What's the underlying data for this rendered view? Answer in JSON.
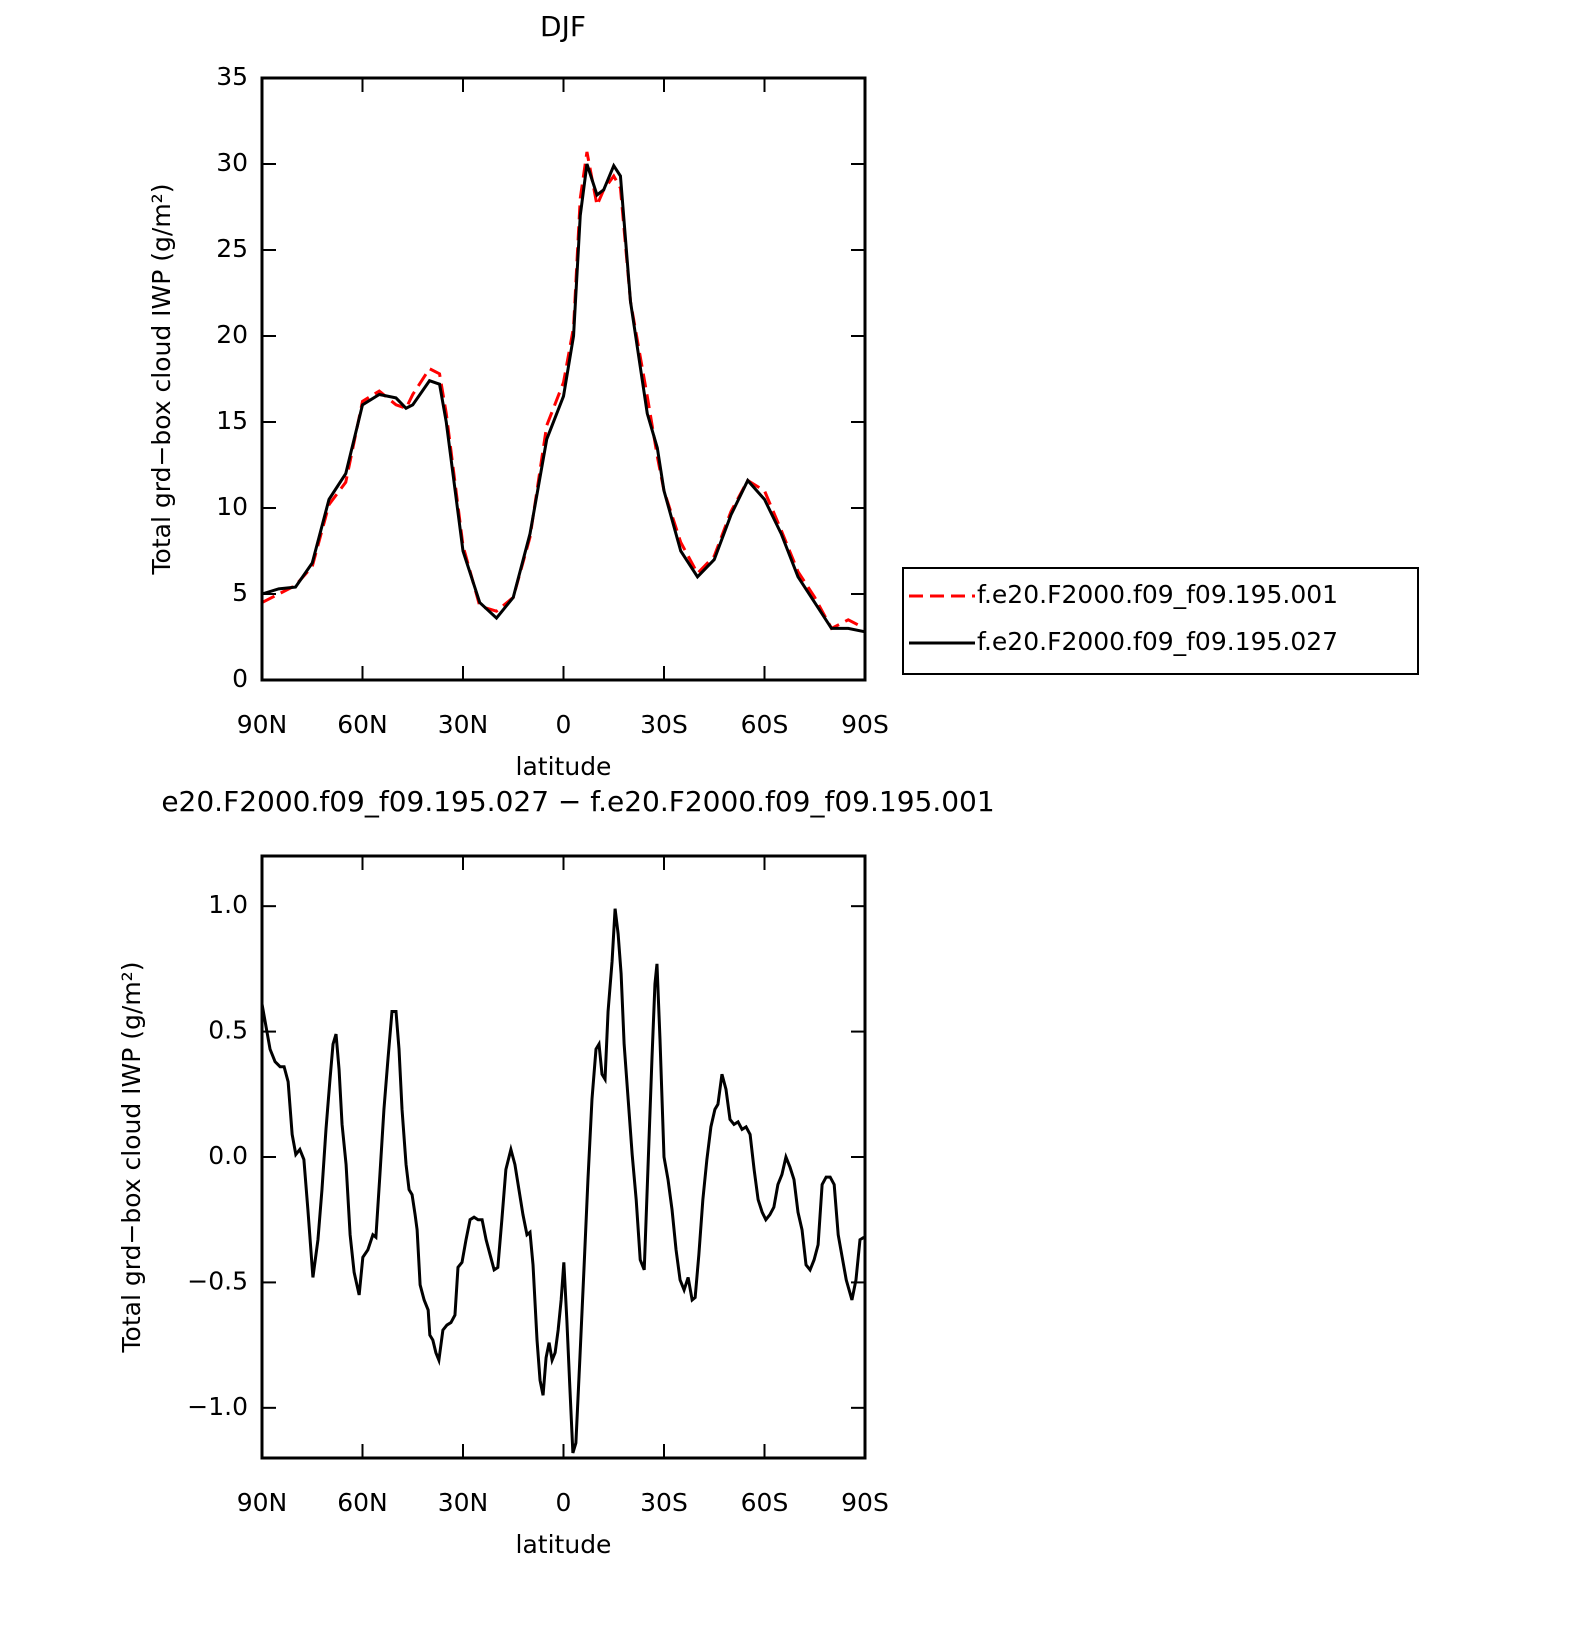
{
  "chart_data": [
    {
      "type": "line",
      "title": "DJF",
      "xlabel": "latitude",
      "ylabel": "Total grd−box cloud IWP (g/m²)",
      "xlim": [
        90,
        -90
      ],
      "xticks": [
        {
          "value": 90,
          "label": "90N"
        },
        {
          "value": 60,
          "label": "60N"
        },
        {
          "value": 30,
          "label": "30N"
        },
        0,
        {
          "value": -30,
          "label": "30S"
        },
        {
          "value": -60,
          "label": "60S"
        },
        {
          "value": -90,
          "label": "90S"
        }
      ],
      "ylim": [
        0,
        35
      ],
      "yticks": [
        0,
        5,
        10,
        15,
        20,
        25,
        30,
        35
      ],
      "legend": "outside-right",
      "x": [
        90,
        85,
        80,
        75,
        70,
        65,
        60,
        55,
        50,
        47,
        45,
        40,
        37,
        35,
        30,
        25,
        20,
        15,
        10,
        5,
        0,
        -3,
        -5,
        -7,
        -10,
        -12,
        -15,
        -17,
        -20,
        -25,
        -28,
        -30,
        -35,
        -40,
        -45,
        -50,
        -55,
        -60,
        -65,
        -70,
        -75,
        -80,
        -85,
        -90
      ],
      "series": [
        {
          "name": "f.e20.F2000.f09_f09.195.001",
          "color": "#ff0000",
          "dash": true,
          "values": [
            4.5,
            5.0,
            5.5,
            6.6,
            10.2,
            11.5,
            16.2,
            16.8,
            16.0,
            15.8,
            16.6,
            18.1,
            17.8,
            15.5,
            7.8,
            4.3,
            4.0,
            4.8,
            8.3,
            14.8,
            17.3,
            20.5,
            28,
            30.7,
            27.6,
            28.5,
            29.3,
            28.6,
            22,
            16.5,
            13,
            11,
            8,
            6.2,
            7.2,
            9.8,
            11.6,
            11.0,
            8.7,
            6.3,
            4.8,
            3.0,
            3.5,
            3.0
          ]
        },
        {
          "name": "f.e20.F2000.f09_f09.195.027",
          "color": "#000000",
          "dash": false,
          "values": [
            5.0,
            5.3,
            5.4,
            6.8,
            10.5,
            12.0,
            16.0,
            16.6,
            16.4,
            15.8,
            16.0,
            17.4,
            17.2,
            15,
            7.5,
            4.5,
            3.6,
            4.8,
            8.5,
            14,
            16.5,
            20,
            27,
            30.0,
            28.2,
            28.5,
            29.9,
            29.3,
            22,
            15.5,
            13.5,
            11,
            7.5,
            6.0,
            7.0,
            9.6,
            11.6,
            10.5,
            8.5,
            6.0,
            4.5,
            3.0,
            3.0,
            2.8
          ]
        }
      ]
    },
    {
      "type": "line",
      "title": "e20.F2000.f09_f09.195.027 − f.e20.F2000.f09_f09.195.001",
      "xlabel": "latitude",
      "ylabel": "Total grd−box cloud IWP (g/m²)",
      "xlim": [
        90,
        -90
      ],
      "xticks": [
        {
          "value": 90,
          "label": "90N"
        },
        {
          "value": 60,
          "label": "60N"
        },
        {
          "value": 30,
          "label": "30N"
        },
        0,
        {
          "value": -30,
          "label": "30S"
        },
        {
          "value": -60,
          "label": "60S"
        },
        {
          "value": -90,
          "label": "90S"
        }
      ],
      "ylim": [
        -1.2,
        1.2
      ],
      "yticks": [
        {
          "value": -1,
          "label": "−1.0"
        },
        {
          "value": -0.5,
          "label": "−0.5"
        },
        {
          "value": 0,
          "label": "0.0"
        },
        0.5,
        {
          "value": 1,
          "label": "1.0"
        }
      ],
      "x": [
        90,
        87.6,
        86.1,
        84.6,
        83.4,
        82.2,
        81,
        79.9,
        78.7,
        77.5,
        76.3,
        74.8,
        73.3,
        72.1,
        70.9,
        69.7,
        68.8,
        67.9,
        67,
        66.1,
        64.9,
        63.7,
        62.5,
        61,
        59.9,
        58.4,
        56.9,
        56,
        54.8,
        53.6,
        52.4,
        51.2,
        50,
        49.1,
        48.2,
        47,
        46.1,
        45.2,
        44.3,
        43.7,
        42.8,
        41.6,
        40.4,
        39.9,
        39,
        38.1,
        37.2,
        36,
        34.8,
        33.6,
        32.4,
        31.5,
        30.3,
        29.1,
        27.9,
        26.7,
        25.5,
        24.3,
        23.1,
        21.9,
        20.7,
        19.6,
        18.4,
        17.2,
        15.7,
        14.5,
        13.3,
        12.1,
        10.9,
        10,
        9.1,
        7.9,
        7,
        6.1,
        5.2,
        4.3,
        3.4,
        2.5,
        1.6,
        0.7,
        -0.1,
        -1.0,
        -1.9,
        -2.8,
        -3.7,
        -4.9,
        -6.1,
        -7.3,
        -8.5,
        -9.7,
        -10.6,
        -11.5,
        -12.4,
        -13.3,
        -14.5,
        -15.4,
        -16.3,
        -17.2,
        -18.1,
        -19.3,
        -20.5,
        -21.7,
        -22.9,
        -24.1,
        -25.2,
        -26.4,
        -27.3,
        -27.9,
        -28.8,
        -30,
        -31.2,
        -32.4,
        -33.6,
        -34.8,
        -36,
        -37.2,
        -38.4,
        -39.3,
        -40.4,
        -41.6,
        -42.8,
        -44,
        -45.2,
        -46.1,
        -47.3,
        -48.5,
        -49.7,
        -50.9,
        -52.1,
        -53.3,
        -54.5,
        -55.7,
        -56.9,
        -58.1,
        -59.3,
        -60.4,
        -61.6,
        -62.8,
        -64,
        -65.2,
        -66.4,
        -67.6,
        -68.8,
        -70,
        -71.2,
        -72.4,
        -73.6,
        -74.8,
        -76,
        -77.2,
        -78.4,
        -79.6,
        -80.8,
        -82,
        -83.2,
        -84.4,
        -86.1,
        -87.3,
        -88.5,
        -89.7
      ],
      "series": [
        {
          "color": "#000000",
          "dash": false,
          "values": [
            0.61,
            0.43,
            0.38,
            0.36,
            0.36,
            0.3,
            0.09,
            0.01,
            0.03,
            -0.01,
            -0.21,
            -0.48,
            -0.33,
            -0.13,
            0.11,
            0.31,
            0.45,
            0.49,
            0.35,
            0.13,
            -0.03,
            -0.31,
            -0.46,
            -0.55,
            -0.4,
            -0.37,
            -0.31,
            -0.32,
            -0.07,
            0.19,
            0.39,
            0.58,
            0.58,
            0.43,
            0.19,
            -0.03,
            -0.13,
            -0.15,
            -0.23,
            -0.29,
            -0.51,
            -0.57,
            -0.61,
            -0.71,
            -0.73,
            -0.78,
            -0.81,
            -0.69,
            -0.67,
            -0.66,
            -0.63,
            -0.44,
            -0.42,
            -0.33,
            -0.25,
            -0.24,
            -0.25,
            -0.25,
            -0.33,
            -0.39,
            -0.45,
            -0.44,
            -0.25,
            -0.05,
            0.03,
            -0.03,
            -0.13,
            -0.23,
            -0.31,
            -0.3,
            -0.43,
            -0.73,
            -0.89,
            -0.95,
            -0.8,
            -0.74,
            -0.81,
            -0.78,
            -0.69,
            -0.57,
            -0.42,
            -0.65,
            -0.92,
            -1.18,
            -1.14,
            -0.8,
            -0.45,
            -0.09,
            0.23,
            0.43,
            0.45,
            0.33,
            0.31,
            0.58,
            0.78,
            0.99,
            0.89,
            0.73,
            0.45,
            0.23,
            0.01,
            -0.17,
            -0.41,
            -0.45,
            -0.05,
            0.39,
            0.69,
            0.77,
            0.47,
            0.0,
            -0.09,
            -0.21,
            -0.37,
            -0.49,
            -0.53,
            -0.48,
            -0.57,
            -0.56,
            -0.39,
            -0.17,
            -0.01,
            0.12,
            0.19,
            0.21,
            0.33,
            0.27,
            0.15,
            0.13,
            0.14,
            0.11,
            0.12,
            0.09,
            -0.05,
            -0.17,
            -0.22,
            -0.25,
            -0.23,
            -0.2,
            -0.11,
            -0.07,
            0.0,
            -0.04,
            -0.09,
            -0.22,
            -0.29,
            -0.43,
            -0.45,
            -0.41,
            -0.35,
            -0.11,
            -0.08,
            -0.08,
            -0.11,
            -0.31,
            -0.4,
            -0.49,
            -0.57,
            -0.49,
            -0.33,
            -0.32
          ]
        }
      ]
    }
  ]
}
